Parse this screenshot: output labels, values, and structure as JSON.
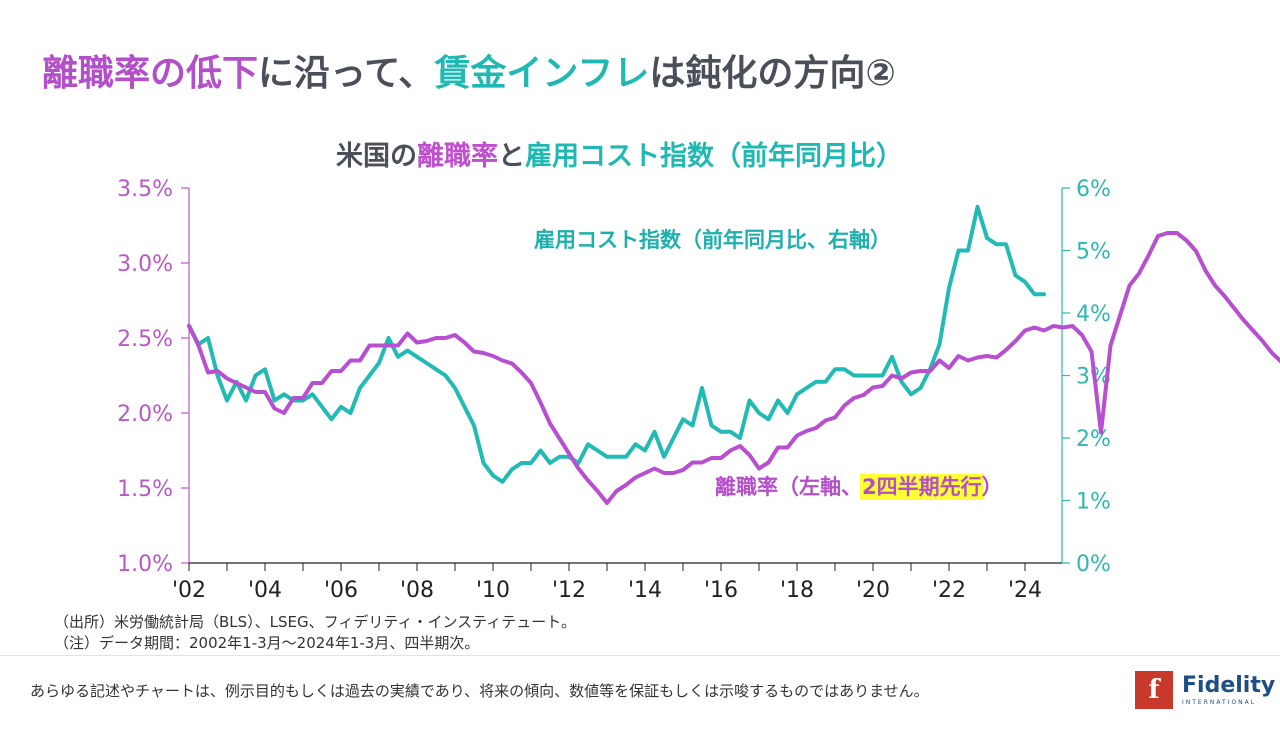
{
  "title": {
    "part1": "離職率の低下",
    "part2": "に沿って、",
    "part3": "賃金インフレ",
    "part4": "は鈍化の方向②"
  },
  "subtitle": {
    "part1": "米国の",
    "part2": "離職率",
    "part3": "と",
    "part4": "雇用コスト指数（前年同月比）"
  },
  "colors": {
    "separation_rate": "#b84fd0",
    "eci": "#22bab5",
    "highlight": "#ffff33",
    "text": "#4a4f5a"
  },
  "chart_data": {
    "type": "line",
    "title": "米国の離職率と雇用コスト指数（前年同月比）",
    "xlabel": "",
    "x_ticks": [
      "'02",
      "'04",
      "'06",
      "'08",
      "'10",
      "'12",
      "'14",
      "'16",
      "'18",
      "'20",
      "'22",
      "'24"
    ],
    "x_range": [
      2002,
      2025
    ],
    "y_left": {
      "label": "離職率",
      "ticks": [
        "1.0%",
        "1.5%",
        "2.0%",
        "2.5%",
        "3.0%",
        "3.5%"
      ],
      "range": [
        1.0,
        3.5
      ]
    },
    "y_right": {
      "label": "雇用コスト指数",
      "ticks": [
        "0%",
        "1%",
        "2%",
        "3%",
        "4%",
        "5%",
        "6%"
      ],
      "range": [
        0,
        6
      ]
    },
    "annotations": {
      "eci_label": "雇用コスト指数（前年同月比、右軸）",
      "sep_label_main": "離職率（左軸、",
      "sep_label_highlight": "2四半期先行",
      "sep_label_end": "）"
    },
    "series": [
      {
        "name": "離職率（左軸、2四半期先行）",
        "axis": "left",
        "start": 2002.0,
        "step": 0.25,
        "values": [
          2.58,
          2.45,
          2.27,
          2.28,
          2.23,
          2.2,
          2.17,
          2.14,
          2.14,
          2.03,
          2.0,
          2.1,
          2.1,
          2.2,
          2.2,
          2.28,
          2.28,
          2.35,
          2.35,
          2.45,
          2.45,
          2.45,
          2.45,
          2.53,
          2.47,
          2.48,
          2.5,
          2.5,
          2.52,
          2.47,
          2.41,
          2.4,
          2.38,
          2.35,
          2.33,
          2.27,
          2.2,
          2.07,
          1.93,
          1.83,
          1.73,
          1.63,
          1.55,
          1.48,
          1.4,
          1.48,
          1.52,
          1.57,
          1.6,
          1.63,
          1.6,
          1.6,
          1.62,
          1.67,
          1.67,
          1.7,
          1.7,
          1.75,
          1.78,
          1.72,
          1.63,
          1.67,
          1.77,
          1.77,
          1.85,
          1.88,
          1.9,
          1.95,
          1.97,
          2.05,
          2.1,
          2.12,
          2.17,
          2.18,
          2.25,
          2.23,
          2.27,
          2.28,
          2.28,
          2.35,
          2.3,
          2.38,
          2.35,
          2.37,
          2.38,
          2.37,
          2.42,
          2.48,
          2.55,
          2.57,
          2.55,
          2.58,
          2.57,
          2.58,
          2.52,
          2.41,
          1.87,
          2.45,
          2.65,
          2.85,
          2.93,
          3.05,
          3.18,
          3.2,
          3.2,
          3.15,
          3.08,
          2.95,
          2.85,
          2.78,
          2.7,
          2.62,
          2.55,
          2.48,
          2.4,
          2.34
        ]
      },
      {
        "name": "雇用コスト指数（前年同月比、右軸）",
        "axis": "right",
        "start": 2002.0,
        "step": 0.25,
        "values": [
          3.8,
          3.5,
          3.6,
          3.0,
          2.6,
          2.9,
          2.6,
          3.0,
          3.1,
          2.6,
          2.7,
          2.6,
          2.6,
          2.7,
          2.5,
          2.3,
          2.5,
          2.4,
          2.8,
          3.0,
          3.2,
          3.6,
          3.3,
          3.4,
          3.3,
          3.2,
          3.1,
          3.0,
          2.8,
          2.5,
          2.2,
          1.6,
          1.4,
          1.3,
          1.5,
          1.6,
          1.6,
          1.8,
          1.6,
          1.7,
          1.7,
          1.6,
          1.9,
          1.8,
          1.7,
          1.7,
          1.7,
          1.9,
          1.8,
          2.1,
          1.7,
          2.0,
          2.3,
          2.2,
          2.8,
          2.2,
          2.1,
          2.1,
          2.0,
          2.6,
          2.4,
          2.3,
          2.6,
          2.4,
          2.7,
          2.8,
          2.9,
          2.9,
          3.1,
          3.1,
          3.0,
          3.0,
          3.0,
          3.0,
          3.3,
          2.9,
          2.7,
          2.8,
          3.1,
          3.5,
          4.4,
          5.0,
          5.0,
          5.7,
          5.2,
          5.1,
          5.1,
          4.6,
          4.5,
          4.3,
          4.3
        ]
      }
    ]
  },
  "footnotes": {
    "source": "（出所）米労働統計局（BLS）、LSEG、フィデリティ・インスティテュート。",
    "note": "（注）データ期間：2002年1-3月～2024年1-3月、四半期次。"
  },
  "disclaimer": "あらゆる記述やチャートは、例示目的もしくは過去の実績であり、将来の傾向、数値等を保証もしくは示唆するものではありません。",
  "logo": {
    "mark": "f",
    "name": "Fidelity",
    "sub": "INTERNATIONAL"
  }
}
